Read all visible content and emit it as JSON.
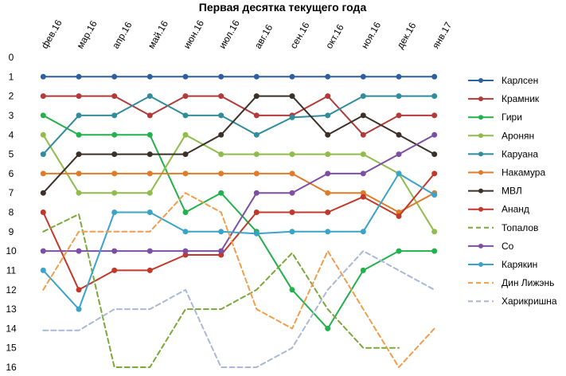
{
  "chart_data": {
    "type": "line",
    "title": "Первая десятка текущего года",
    "x": [
      "фев.16",
      "мар.16",
      "апр.16",
      "май.16",
      "июн.16",
      "июл.16",
      "авг.16",
      "сен.16",
      "окт.16",
      "ноя.16",
      "дек.16",
      "янв.17"
    ],
    "yticks": [
      "0",
      "1",
      "2",
      "3",
      "4",
      "5",
      "6",
      "7",
      "8",
      "9",
      "10",
      "11",
      "12",
      "13",
      "14",
      "15",
      "16"
    ],
    "ylim": [
      0,
      16
    ],
    "y_inverted": true,
    "grid": false,
    "legend_position": "right",
    "series": [
      {
        "name": "Карлсен",
        "color": "#2e5f9e",
        "dash": false,
        "values": [
          1,
          1,
          1,
          1,
          1,
          1,
          1,
          1,
          1,
          1,
          1,
          1
        ]
      },
      {
        "name": "Крамник",
        "color": "#b33a3a",
        "dash": false,
        "values": [
          2,
          2,
          2,
          3,
          2,
          2,
          3,
          3,
          2,
          4,
          3,
          3
        ]
      },
      {
        "name": "Гири",
        "color": "#22b14c",
        "dash": false,
        "values": [
          3,
          4,
          4,
          4,
          8,
          7,
          9,
          12,
          14,
          11,
          10,
          10
        ]
      },
      {
        "name": "Аронян",
        "color": "#8fbc4a",
        "dash": false,
        "values": [
          4,
          7,
          7,
          7,
          4,
          5,
          5,
          5,
          5,
          5,
          6,
          9
        ]
      },
      {
        "name": "Каруана",
        "color": "#318c9c",
        "dash": false,
        "values": [
          5,
          3,
          3,
          2,
          3,
          3,
          4,
          3.1,
          3,
          2,
          2,
          2
        ]
      },
      {
        "name": "Накамура",
        "color": "#e07b28",
        "dash": false,
        "values": [
          6,
          6,
          6,
          6,
          6,
          6,
          6,
          6,
          7,
          7,
          8,
          7
        ]
      },
      {
        "name": "МВЛ",
        "color": "#3b3128",
        "dash": false,
        "values": [
          7,
          5,
          5,
          5,
          5,
          4,
          2,
          2,
          4,
          3,
          4,
          5
        ]
      },
      {
        "name": "Ананд",
        "color": "#c0392b",
        "dash": false,
        "values": [
          8,
          12,
          11,
          11,
          10.2,
          10.2,
          8,
          8,
          8,
          7.2,
          8.2,
          6
        ]
      },
      {
        "name": "Топалов",
        "color": "#7aa83a",
        "dash": true,
        "values": [
          9,
          8.1,
          16,
          16,
          13,
          13,
          12,
          10.1,
          13,
          15,
          15,
          null
        ]
      },
      {
        "name": "Со",
        "color": "#7e4ea3",
        "dash": false,
        "values": [
          10,
          10,
          10,
          10,
          10,
          10,
          7,
          7,
          6,
          6,
          5,
          4
        ]
      },
      {
        "name": "Карякин",
        "color": "#3ba3c9",
        "dash": false,
        "values": [
          11,
          13,
          8,
          8,
          9,
          9,
          9.1,
          9,
          9,
          9,
          6,
          7.1
        ]
      },
      {
        "name": "Дин Лижэнь",
        "color": "#f39c4a",
        "dash": true,
        "values": [
          12,
          9,
          9,
          9,
          7,
          8,
          13,
          14,
          10,
          13,
          16,
          14
        ]
      },
      {
        "name": "Харикришна",
        "color": "#a9b8d6",
        "dash": true,
        "values": [
          14.1,
          14.1,
          13,
          13,
          12,
          16,
          16,
          15,
          12,
          10,
          11,
          12
        ]
      }
    ]
  }
}
